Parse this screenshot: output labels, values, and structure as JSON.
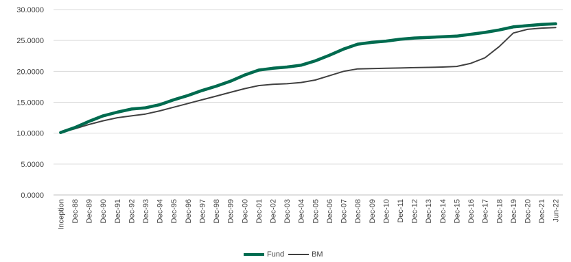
{
  "chart_data": {
    "type": "line",
    "categories": [
      "Inception",
      "Dec-88",
      "Dec-89",
      "Dec-90",
      "Dec-91",
      "Dec-92",
      "Dec-93",
      "Dec-94",
      "Dec-95",
      "Dec-96",
      "Dec-97",
      "Dec-98",
      "Dec-99",
      "Dec-00",
      "Dec-01",
      "Dec-02",
      "Dec-03",
      "Dec-04",
      "Dec-05",
      "Dec-06",
      "Dec-07",
      "Dec-08",
      "Dec-09",
      "Dec-10",
      "Dec-11",
      "Dec-12",
      "Dec-13",
      "Dec-14",
      "Dec-15",
      "Dec-16",
      "Dec-17",
      "Dec-18",
      "Dec-19",
      "Dec-20",
      "Dec-21",
      "Jun-22"
    ],
    "series": [
      {
        "name": "Fund",
        "color": "#006b4f",
        "values": [
          10.1,
          10.9,
          11.9,
          12.8,
          13.4,
          13.9,
          14.1,
          14.6,
          15.4,
          16.1,
          16.9,
          17.6,
          18.4,
          19.4,
          20.2,
          20.5,
          20.7,
          21.0,
          21.7,
          22.6,
          23.6,
          24.4,
          24.7,
          24.9,
          25.2,
          25.4,
          25.5,
          25.6,
          25.7,
          26.0,
          26.3,
          26.7,
          27.2,
          27.4,
          27.6,
          27.7
        ]
      },
      {
        "name": "BM",
        "color": "#404040",
        "values": [
          10.1,
          10.7,
          11.4,
          12.0,
          12.5,
          12.8,
          13.1,
          13.6,
          14.2,
          14.8,
          15.4,
          16.0,
          16.6,
          17.2,
          17.7,
          17.9,
          18.0,
          18.2,
          18.6,
          19.3,
          20.0,
          20.4,
          20.45,
          20.5,
          20.55,
          20.6,
          20.65,
          20.7,
          20.8,
          21.3,
          22.2,
          24.0,
          26.2,
          26.8,
          27.0,
          27.1
        ]
      }
    ],
    "yticks": [
      "0.0000",
      "5.0000",
      "10.0000",
      "15.0000",
      "20.0000",
      "25.0000",
      "30.0000"
    ],
    "ylim": [
      0,
      30
    ],
    "grid": true,
    "legend": "bottom-center",
    "title": "",
    "xlabel": "",
    "ylabel": ""
  }
}
